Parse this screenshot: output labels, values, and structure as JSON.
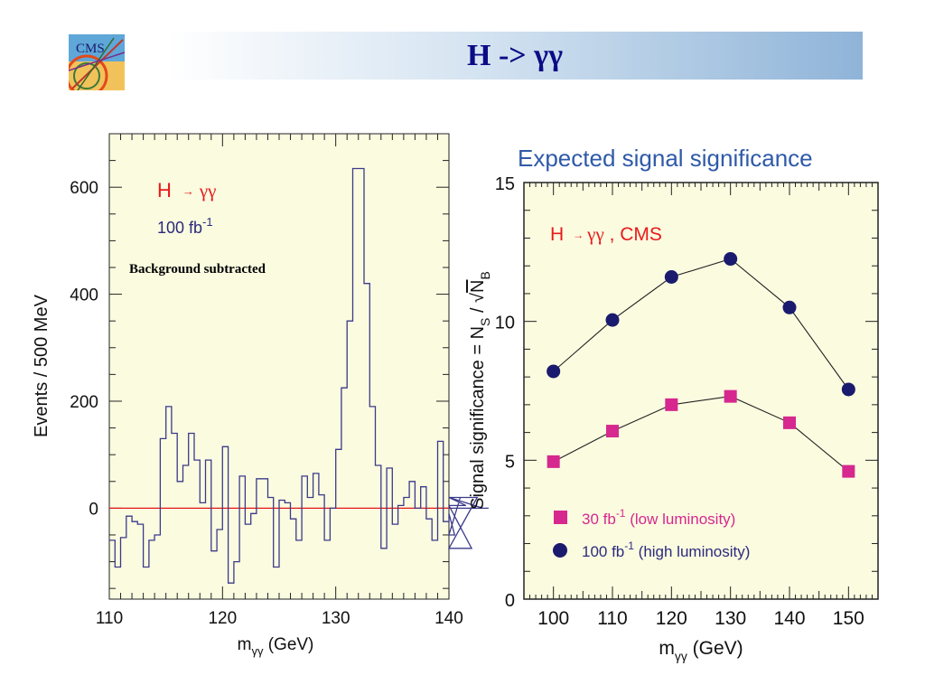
{
  "slide": {
    "title": "H -> γγ",
    "logo_text": "CMS"
  },
  "chart_data": [
    {
      "type": "histogram",
      "annotations": {
        "process": "H",
        "arrow": "→",
        "photons": "γγ",
        "luminosity": "100 fb",
        "luminosity_exp": "-1",
        "note": "Background subtracted"
      },
      "xlabel": "m",
      "xlabel_sub": "γγ",
      "xlabel_unit": " (GeV)",
      "ylabel": "Events / 500 MeV",
      "xlim": [
        110,
        140
      ],
      "ylim": [
        -170,
        700
      ],
      "xticks": [
        110,
        120,
        130,
        140
      ],
      "yticks": [
        0,
        200,
        400,
        600
      ],
      "baseline": 0,
      "bin_width": 0.5,
      "x_start": 110,
      "values": [
        -60,
        -110,
        -55,
        -15,
        -25,
        -30,
        -110,
        -60,
        -50,
        130,
        190,
        140,
        50,
        80,
        140,
        90,
        10,
        90,
        -80,
        -40,
        115,
        -140,
        -100,
        60,
        -30,
        -10,
        55,
        55,
        20,
        -110,
        15,
        10,
        -20,
        -60,
        60,
        20,
        65,
        25,
        -60,
        0,
        110,
        225,
        350,
        635,
        635,
        420,
        190,
        80,
        -75,
        75,
        -30,
        5,
        20,
        50,
        0,
        40,
        -20,
        -60,
        125,
        -25,
        -10,
        -50,
        20,
        5,
        -75,
        20,
        0,
        0
      ]
    },
    {
      "type": "scatter",
      "title": "Expected signal significance",
      "annotation_process": "H",
      "annotation_arrow": "→",
      "annotation_photons": "γγ",
      "annotation_rest": " , CMS",
      "xlabel": "m",
      "xlabel_sub": "γγ",
      "xlabel_unit": " (GeV)",
      "ylabel_main": "Signal significance = N",
      "ylabel_s": "S",
      "ylabel_div": " / ",
      "ylabel_sqrt": "√",
      "ylabel_n": "N",
      "ylabel_b": "B",
      "xlim": [
        95,
        155
      ],
      "ylim": [
        0,
        15
      ],
      "xticks": [
        100,
        110,
        120,
        130,
        140,
        150
      ],
      "yticks": [
        0,
        5,
        10,
        15
      ],
      "x": [
        100,
        110,
        120,
        130,
        140,
        150
      ],
      "series": [
        {
          "name": "30 fb",
          "name_exp": "-1",
          "name_note": " (low luminosity)",
          "marker": "square",
          "color": "#d6288e",
          "values": [
            4.95,
            6.05,
            7.0,
            7.3,
            6.35,
            4.6
          ]
        },
        {
          "name": "100 fb",
          "name_exp": "-1",
          "name_note": " (high luminosity)",
          "marker": "circle",
          "color": "#1a1a6e",
          "values": [
            8.2,
            10.05,
            11.6,
            12.25,
            10.5,
            7.55
          ]
        }
      ]
    }
  ],
  "colors": {
    "panel_bg": "#fbfbe0",
    "histogram_line": "#3b3a8a",
    "baseline": "#e31818",
    "annotation_red": "#e81b1b",
    "annotation_blue": "#2b2a7e",
    "title_blue": "#2f5aa8",
    "slide_title": "#0b0b86"
  }
}
